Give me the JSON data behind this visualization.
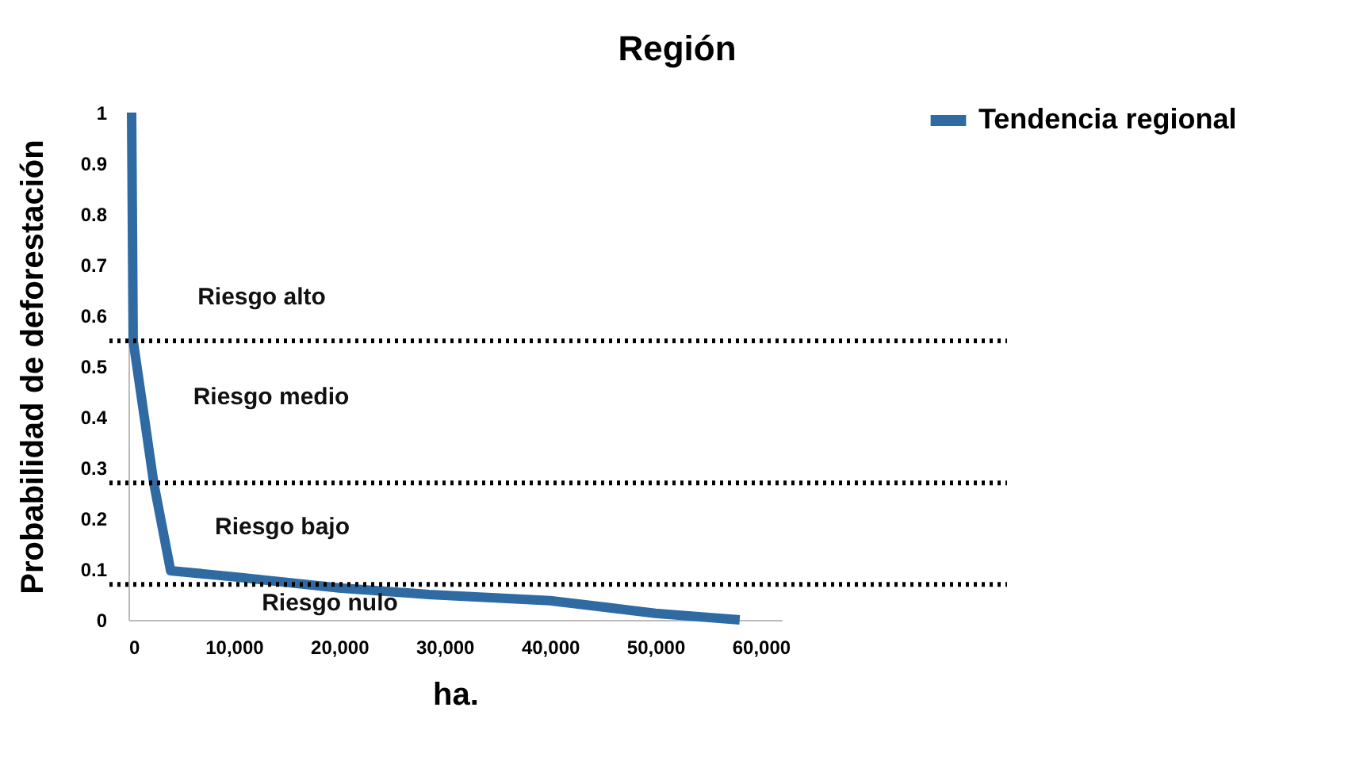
{
  "chart_data": {
    "type": "line",
    "title": "Región",
    "xlabel": "ha.",
    "ylabel": "Probabilidad de deforestación",
    "series": [
      {
        "name": "Tendencia regional",
        "color": "#2f6aa3",
        "x": [
          300,
          450,
          1500,
          2400,
          4000,
          10000,
          20000,
          28500,
          40000,
          50000,
          58000
        ],
        "values": [
          1.0,
          0.55,
          0.4,
          0.27,
          0.097,
          0.085,
          0.063,
          0.05,
          0.038,
          0.013,
          0
        ]
      }
    ],
    "xlim": [
      0,
      62000
    ],
    "xticks": [
      {
        "value": 0,
        "label": "0"
      },
      {
        "value": 10000,
        "label": "10,000"
      },
      {
        "value": 20000,
        "label": "20,000"
      },
      {
        "value": 30000,
        "label": "30,000"
      },
      {
        "value": 40000,
        "label": "40,000"
      },
      {
        "value": 50000,
        "label": "50,000"
      },
      {
        "value": 60000,
        "label": "60,000"
      }
    ],
    "ylim": [
      0,
      1
    ],
    "yticks": [
      0,
      0.1,
      0.2,
      0.3,
      0.4,
      0.5,
      0.6,
      0.7,
      0.8,
      0.9,
      1
    ],
    "ref_lines": [
      {
        "axis": "y",
        "value": 0.55,
        "color": "#000000",
        "line_style": "dotted"
      },
      {
        "axis": "y",
        "value": 0.27,
        "color": "#000000",
        "line_style": "dotted"
      },
      {
        "axis": "y",
        "value": 0.07,
        "color": "#000000",
        "line_style": "dotted"
      }
    ],
    "annotations": [
      "Riesgo alto",
      "Riesgo medio",
      "Riesgo bajo",
      "Riesgo nulo"
    ],
    "grid": false,
    "legend": "top right",
    "marker": "none",
    "line_style": "solid"
  }
}
